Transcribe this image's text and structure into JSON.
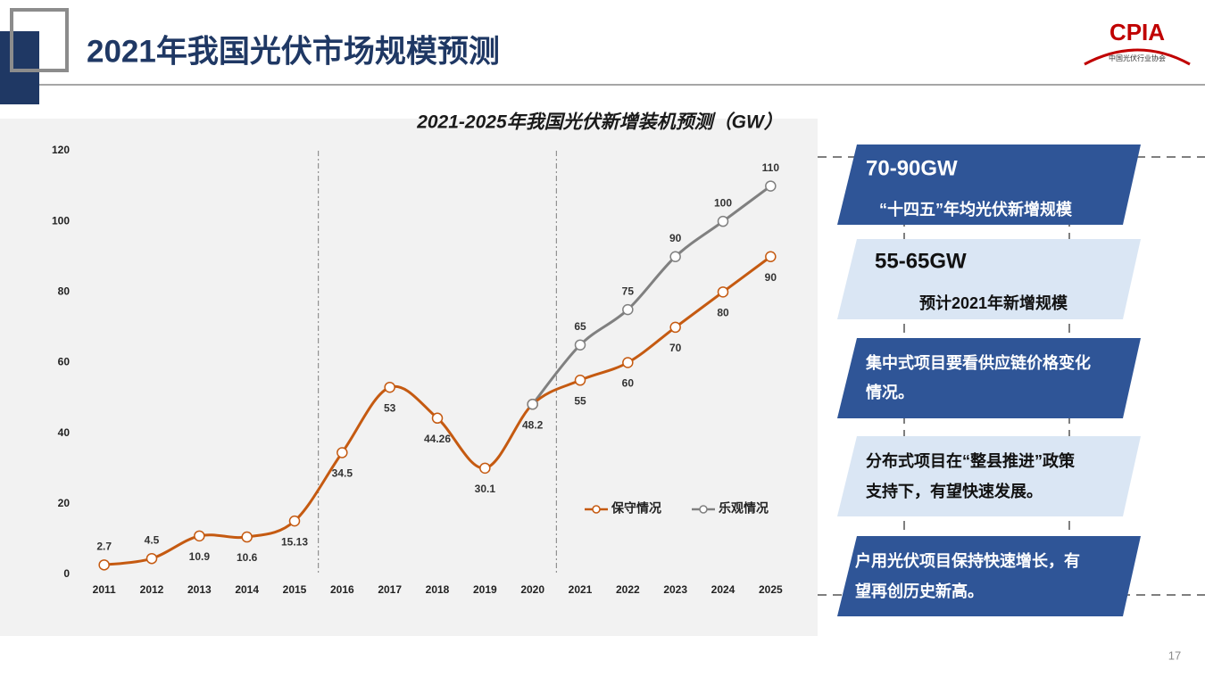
{
  "header": {
    "title": "2021年我国光伏市场规模预测",
    "logo": "CPIA",
    "logo_sub": "中国光伏行业协会"
  },
  "chart_data": {
    "type": "line",
    "title": "2021-2025年我国光伏新增装机预测（GW）",
    "categories": [
      "2011",
      "2012",
      "2013",
      "2014",
      "2015",
      "2016",
      "2017",
      "2018",
      "2019",
      "2020",
      "2021",
      "2022",
      "2023",
      "2024",
      "2025"
    ],
    "series": [
      {
        "name": "保守情况",
        "color": "#c55a11",
        "values": [
          2.7,
          4.5,
          10.9,
          10.6,
          15.13,
          34.5,
          53,
          44.26,
          30.1,
          48.2,
          55,
          60,
          70,
          80,
          90
        ]
      },
      {
        "name": "乐观情况",
        "color": "#808080",
        "values": [
          null,
          null,
          null,
          null,
          null,
          null,
          null,
          null,
          null,
          48.2,
          65,
          75,
          90,
          100,
          110
        ],
        "value_labels": [
          null,
          null,
          null,
          null,
          null,
          null,
          null,
          null,
          null,
          null,
          "65",
          "75",
          "90",
          "100",
          "110"
        ]
      }
    ],
    "ylim": [
      0,
      120
    ],
    "yticks": [
      0,
      20,
      40,
      60,
      80,
      100,
      120
    ],
    "smooth": true,
    "legend": "bottom-right"
  },
  "panels": [
    {
      "heading": "70-90GW",
      "lines": [
        "“十四五”年均光伏新增规模"
      ]
    },
    {
      "heading": "55-65GW",
      "lines": [
        "预计2021年新增规模"
      ]
    },
    {
      "lines": [
        "集中式项目要看供应链价格变化",
        "情况。"
      ]
    },
    {
      "lines": [
        "分布式项目在“整县推进”政策",
        "支持下，有望快速发展。"
      ]
    },
    {
      "lines": [
        "户用光伏项目保持快速增长，有",
        "望再创历史新高。"
      ]
    }
  ],
  "page_number": "17"
}
